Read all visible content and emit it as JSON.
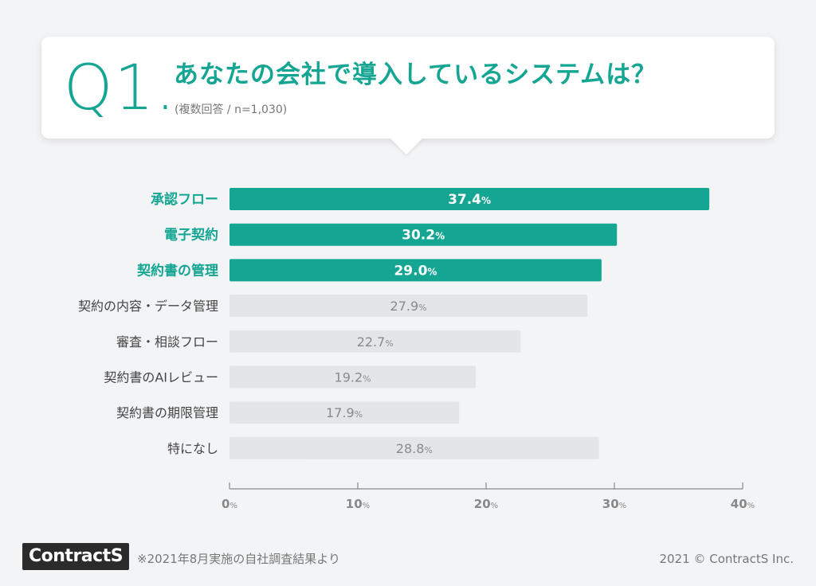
{
  "header": {
    "question_number": "Q1.",
    "title": "あなたの会社で導入しているシステムは？",
    "subtitle": "(複数回答 / n=1,030)"
  },
  "colors": {
    "highlight": "#14a693",
    "muted_bar": "#e3e5e9",
    "muted_label": "#888a8f",
    "axis": "#888888"
  },
  "chart_data": {
    "type": "bar",
    "orientation": "horizontal",
    "categories": [
      "承認フロー",
      "電子契約",
      "契約書の管理",
      "契約の内容・データ管理",
      "審査・相談フロー",
      "契約書のAIレビュー",
      "契約書の期限管理",
      "特になし"
    ],
    "values": [
      37.4,
      30.2,
      29.0,
      27.9,
      22.7,
      19.2,
      17.9,
      28.8
    ],
    "value_labels": [
      "37.4",
      "30.2",
      "29.0",
      "27.9",
      "22.7",
      "19.2",
      "17.9",
      "28.8"
    ],
    "highlighted": [
      true,
      true,
      true,
      false,
      false,
      false,
      false,
      false
    ],
    "value_unit": "%",
    "xlim": [
      0,
      40
    ],
    "xticks": [
      "0",
      "10",
      "20",
      "30",
      "40"
    ],
    "tick_unit": "%",
    "grid": false
  },
  "footer": {
    "logo": "ContractS",
    "note": "※2021年8月実施の自社調査結果より",
    "copyright": "2021 © ContractS Inc."
  }
}
